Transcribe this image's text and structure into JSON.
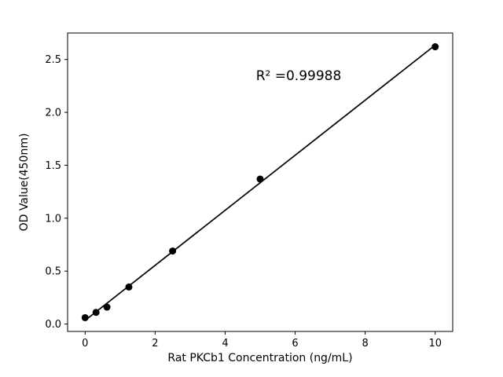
{
  "chart_data": {
    "type": "scatter",
    "title": "",
    "xlabel": "Rat PKCb1 Concentration (ng/mL)",
    "ylabel": "OD Value(450nm)",
    "annotation": "R² =0.99988",
    "x": [
      0,
      0.3125,
      0.625,
      1.25,
      2.5,
      5,
      10
    ],
    "y": [
      0.06,
      0.11,
      0.16,
      0.35,
      0.69,
      1.37,
      2.62
    ],
    "fit": {
      "type": "linear",
      "x_range": [
        0,
        10
      ]
    },
    "x_ticks": [
      0,
      2,
      4,
      6,
      8,
      10
    ],
    "x_tick_labels": [
      "0",
      "2",
      "4",
      "6",
      "8",
      "10"
    ],
    "y_ticks": [
      0.0,
      0.5,
      1.0,
      1.5,
      2.0,
      2.5
    ],
    "y_tick_labels": [
      "0.0",
      "0.5",
      "1.0",
      "1.5",
      "2.0",
      "2.5"
    ],
    "xlim": [
      -0.5,
      10.5
    ],
    "ylim": [
      -0.07,
      2.75
    ],
    "grid": false,
    "legend": "none",
    "colors": {
      "marker": "#000000",
      "line": "#000000",
      "text": "#000000",
      "background": "#ffffff"
    }
  }
}
